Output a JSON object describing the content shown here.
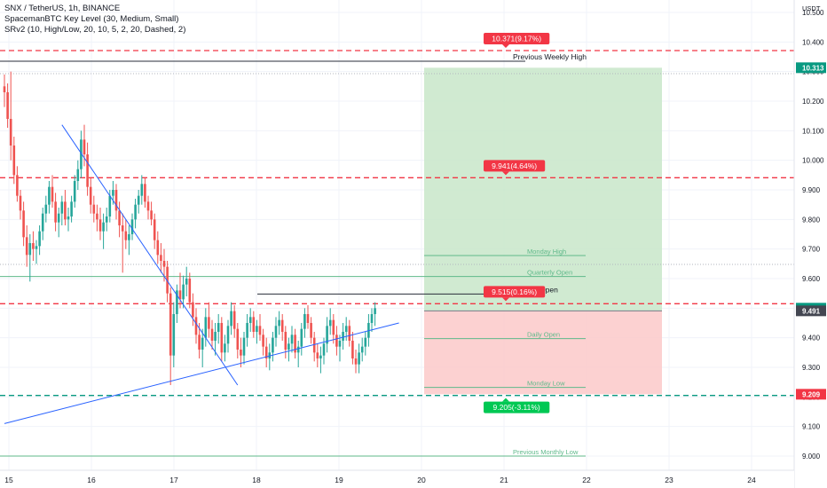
{
  "legend": {
    "symbol": "SNX / TetherUS, 1h, BINANCE",
    "indicator1": "SpacemanBTC Key Level (30, Medium, Small)",
    "indicator2": "SRv2 (10, High/Low, 20, 10, 5, 2, 20, Dashed, 2)"
  },
  "currency": "USDT",
  "colors": {
    "up": "#26a69a",
    "down": "#ef5350",
    "trend": "#2962ff",
    "key": "#5fb98a"
  },
  "chart_data": {
    "type": "candlestick",
    "x_ticks": [
      "15",
      "16",
      "17",
      "18",
      "19",
      "20",
      "21",
      "22",
      "23",
      "24"
    ],
    "y_ticks": [
      "10.500",
      "10.400",
      "10.300",
      "10.200",
      "10.100",
      "10.000",
      "9.900",
      "9.800",
      "9.700",
      "9.600",
      "9.500",
      "9.400",
      "9.300",
      "9.200",
      "9.100",
      "9.000"
    ],
    "ylim": [
      8.97,
      10.53
    ],
    "candles": [
      [
        10.25,
        10.29,
        10.18,
        10.23
      ],
      [
        10.23,
        10.26,
        10.11,
        10.14
      ],
      [
        10.14,
        10.3,
        10.0,
        10.05
      ],
      [
        10.05,
        10.08,
        9.92,
        9.95
      ],
      [
        9.95,
        9.98,
        9.86,
        9.88
      ],
      [
        9.88,
        9.9,
        9.8,
        9.83
      ],
      [
        9.83,
        9.86,
        9.71,
        9.74
      ],
      [
        9.74,
        9.78,
        9.64,
        9.68
      ],
      [
        9.68,
        9.75,
        9.59,
        9.72
      ],
      [
        9.72,
        9.76,
        9.66,
        9.7
      ],
      [
        9.7,
        9.73,
        9.65,
        9.71
      ],
      [
        9.71,
        9.78,
        9.68,
        9.76
      ],
      [
        9.76,
        9.84,
        9.73,
        9.82
      ],
      [
        9.82,
        9.88,
        9.79,
        9.85
      ],
      [
        9.85,
        9.93,
        9.82,
        9.91
      ],
      [
        9.91,
        9.95,
        9.84,
        9.86
      ],
      [
        9.86,
        9.89,
        9.76,
        9.79
      ],
      [
        9.79,
        9.84,
        9.74,
        9.82
      ],
      [
        9.82,
        9.88,
        9.78,
        9.86
      ],
      [
        9.86,
        9.9,
        9.78,
        9.8
      ],
      [
        9.8,
        9.84,
        9.76,
        9.81
      ],
      [
        9.81,
        9.88,
        9.79,
        9.86
      ],
      [
        9.86,
        9.95,
        9.84,
        9.93
      ],
      [
        9.93,
        10.0,
        9.9,
        9.97
      ],
      [
        9.97,
        10.1,
        9.94,
        10.07
      ],
      [
        10.07,
        10.12,
        9.98,
        10.02
      ],
      [
        10.02,
        10.06,
        9.88,
        9.91
      ],
      [
        9.91,
        9.94,
        9.82,
        9.85
      ],
      [
        9.85,
        9.88,
        9.79,
        9.82
      ],
      [
        9.82,
        9.85,
        9.76,
        9.8
      ],
      [
        9.8,
        9.84,
        9.73,
        9.76
      ],
      [
        9.76,
        9.82,
        9.7,
        9.79
      ],
      [
        9.79,
        9.84,
        9.76,
        9.81
      ],
      [
        9.81,
        9.9,
        9.79,
        9.88
      ],
      [
        9.88,
        9.93,
        9.85,
        9.9
      ],
      [
        9.9,
        9.92,
        9.8,
        9.83
      ],
      [
        9.83,
        9.86,
        9.74,
        9.78
      ],
      [
        9.78,
        9.82,
        9.62,
        9.76
      ],
      [
        9.76,
        9.8,
        9.7,
        9.73
      ],
      [
        9.73,
        9.78,
        9.68,
        9.75
      ],
      [
        9.75,
        9.82,
        9.73,
        9.8
      ],
      [
        9.8,
        9.87,
        9.77,
        9.85
      ],
      [
        9.85,
        9.9,
        9.82,
        9.88
      ],
      [
        9.88,
        9.95,
        9.85,
        9.92
      ],
      [
        9.92,
        9.94,
        9.84,
        9.86
      ],
      [
        9.86,
        9.88,
        9.8,
        9.83
      ],
      [
        9.83,
        9.86,
        9.78,
        9.8
      ],
      [
        9.8,
        9.82,
        9.7,
        9.73
      ],
      [
        9.73,
        9.76,
        9.65,
        9.68
      ],
      [
        9.68,
        9.72,
        9.62,
        9.66
      ],
      [
        9.66,
        9.7,
        9.59,
        9.64
      ],
      [
        9.64,
        9.66,
        9.52,
        9.55
      ],
      [
        9.55,
        9.57,
        9.24,
        9.34
      ],
      [
        9.34,
        9.52,
        9.3,
        9.48
      ],
      [
        9.48,
        9.58,
        9.45,
        9.56
      ],
      [
        9.56,
        9.62,
        9.5,
        9.53
      ],
      [
        9.53,
        9.61,
        9.5,
        9.58
      ],
      [
        9.58,
        9.64,
        9.54,
        9.6
      ],
      [
        9.6,
        9.62,
        9.5,
        9.52
      ],
      [
        9.52,
        9.55,
        9.44,
        9.47
      ],
      [
        9.47,
        9.5,
        9.38,
        9.41
      ],
      [
        9.41,
        9.45,
        9.33,
        9.36
      ],
      [
        9.36,
        9.43,
        9.3,
        9.4
      ],
      [
        9.4,
        9.5,
        9.37,
        9.47
      ],
      [
        9.47,
        9.52,
        9.4,
        9.43
      ],
      [
        9.43,
        9.46,
        9.36,
        9.39
      ],
      [
        9.39,
        9.45,
        9.34,
        9.42
      ],
      [
        9.42,
        9.48,
        9.38,
        9.45
      ],
      [
        9.45,
        9.47,
        9.32,
        9.35
      ],
      [
        9.35,
        9.41,
        9.32,
        9.38
      ],
      [
        9.38,
        9.46,
        9.35,
        9.44
      ],
      [
        9.44,
        9.52,
        9.41,
        9.49
      ],
      [
        9.49,
        9.51,
        9.4,
        9.43
      ],
      [
        9.43,
        9.45,
        9.33,
        9.36
      ],
      [
        9.36,
        9.4,
        9.3,
        9.34
      ],
      [
        9.34,
        9.42,
        9.31,
        9.4
      ],
      [
        9.4,
        9.48,
        9.37,
        9.45
      ],
      [
        9.45,
        9.5,
        9.42,
        9.47
      ],
      [
        9.47,
        9.49,
        9.4,
        9.42
      ],
      [
        9.42,
        9.46,
        9.38,
        9.44
      ],
      [
        9.44,
        9.48,
        9.39,
        9.41
      ],
      [
        9.41,
        9.43,
        9.34,
        9.37
      ],
      [
        9.37,
        9.4,
        9.3,
        9.33
      ],
      [
        9.33,
        9.38,
        9.29,
        9.35
      ],
      [
        9.35,
        9.42,
        9.32,
        9.4
      ],
      [
        9.4,
        9.47,
        9.37,
        9.44
      ],
      [
        9.44,
        9.49,
        9.41,
        9.46
      ],
      [
        9.46,
        9.48,
        9.39,
        9.42
      ],
      [
        9.42,
        9.44,
        9.33,
        9.36
      ],
      [
        9.36,
        9.4,
        9.32,
        9.38
      ],
      [
        9.38,
        9.44,
        9.35,
        9.41
      ],
      [
        9.41,
        9.43,
        9.33,
        9.35
      ],
      [
        9.35,
        9.39,
        9.3,
        9.37
      ],
      [
        9.37,
        9.45,
        9.34,
        9.43
      ],
      [
        9.43,
        9.5,
        9.4,
        9.48
      ],
      [
        9.48,
        9.51,
        9.43,
        9.45
      ],
      [
        9.45,
        9.47,
        9.38,
        9.4
      ],
      [
        9.4,
        9.42,
        9.32,
        9.35
      ],
      [
        9.35,
        9.38,
        9.3,
        9.33
      ],
      [
        9.33,
        9.37,
        9.28,
        9.34
      ],
      [
        9.34,
        9.4,
        9.31,
        9.38
      ],
      [
        9.38,
        9.47,
        9.35,
        9.44
      ],
      [
        9.44,
        9.5,
        9.41,
        9.46
      ],
      [
        9.46,
        9.48,
        9.38,
        9.41
      ],
      [
        9.41,
        9.44,
        9.34,
        9.37
      ],
      [
        9.37,
        9.41,
        9.32,
        9.39
      ],
      [
        9.39,
        9.45,
        9.36,
        9.42
      ],
      [
        9.42,
        9.47,
        9.39,
        9.44
      ],
      [
        9.44,
        9.46,
        9.37,
        9.39
      ],
      [
        9.39,
        9.42,
        9.31,
        9.33
      ],
      [
        9.33,
        9.36,
        9.28,
        9.31
      ],
      [
        9.31,
        9.38,
        9.28,
        9.35
      ],
      [
        9.35,
        9.4,
        9.32,
        9.37
      ],
      [
        9.37,
        9.42,
        9.34,
        9.4
      ],
      [
        9.4,
        9.48,
        9.37,
        9.45
      ],
      [
        9.45,
        9.5,
        9.42,
        9.48
      ],
      [
        9.48,
        9.52,
        9.44,
        9.5
      ]
    ],
    "trend_lines": [
      {
        "from": [
          0.0,
          9.11
        ],
        "to": [
          123.5,
          9.45
        ]
      },
      {
        "from": [
          18.0,
          10.12
        ],
        "to": [
          73.0,
          9.24
        ]
      }
    ],
    "levels": [
      {
        "value": 10.371,
        "label": "10.371(9.17%)",
        "style": "dashed-red"
      },
      {
        "value": 10.335,
        "label": "Previous Weekly High",
        "style": "solid-dark"
      },
      {
        "value": 10.293,
        "label": "",
        "style": "dotted"
      },
      {
        "value": 9.941,
        "label": "9.941(4.64%)",
        "style": "dashed-red"
      },
      {
        "value": 9.678,
        "label": "Monday High",
        "style": "key"
      },
      {
        "value": 9.648,
        "label": "",
        "style": "dotted"
      },
      {
        "value": 9.607,
        "label": "Quarterly Open",
        "style": "key"
      },
      {
        "value": 9.548,
        "label": "Weekly Open",
        "style": "solid-dark"
      },
      {
        "value": 9.515,
        "label": "9.515(0.16%)",
        "style": "dashed-red"
      },
      {
        "value": 9.397,
        "label": "Daily Open",
        "style": "key"
      },
      {
        "value": 9.232,
        "label": "Monday Low",
        "style": "key"
      },
      {
        "value": 9.205,
        "label": "9.205(-3.11%)",
        "style": "dashed-green"
      },
      {
        "value": 9.0,
        "label": "Previous Monthly Low",
        "style": "key"
      }
    ],
    "position": {
      "entry": 9.491,
      "target": 10.313,
      "stop": 9.209
    },
    "price_tags": [
      {
        "value": 10.313,
        "label": "10.313",
        "color": "#089981"
      },
      {
        "value": 9.5,
        "label": "9.500",
        "color": "#089981"
      },
      {
        "value": 9.491,
        "label": "9.491",
        "color": "#434651"
      },
      {
        "value": 9.209,
        "label": "9.209",
        "color": "#f23645"
      }
    ]
  }
}
